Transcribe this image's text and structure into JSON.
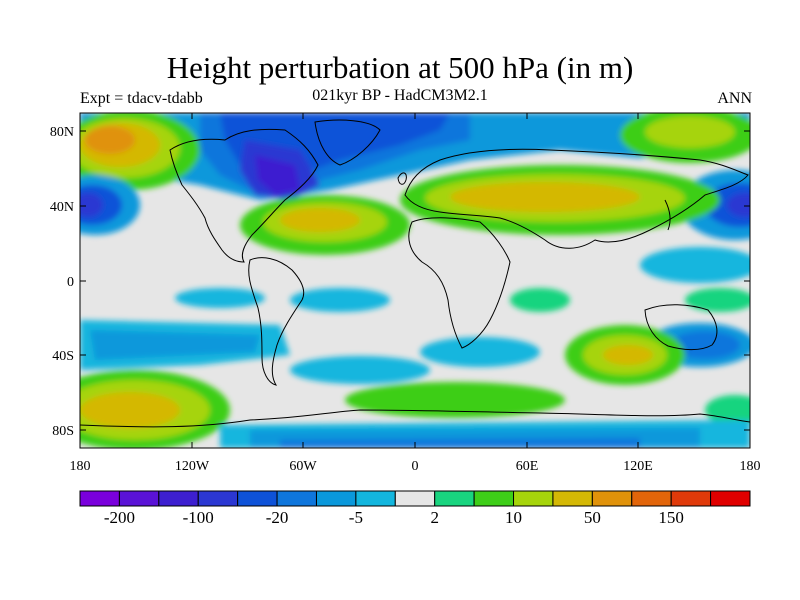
{
  "title": "Height perturbation at 500 hPa (in m)",
  "left_label": "Expt = tdacv-tdabb",
  "center_label": "021kyr BP - HadCM3M2.1",
  "right_label": "ANN",
  "lat_ticks": [
    "80N",
    "40N",
    "0",
    "40S",
    "80S"
  ],
  "lon_ticks": [
    "180",
    "120W",
    "60W",
    "0",
    "60E",
    "120E",
    "180"
  ],
  "colorbar": {
    "colors": [
      "#7a00dc",
      "#5a12d6",
      "#3d1fd0",
      "#2b37d2",
      "#0e52d8",
      "#0f76dc",
      "#0a98db",
      "#13b6de",
      "#e6e6e6",
      "#19d47f",
      "#3ece18",
      "#a6d40b",
      "#d4b805",
      "#e0920a",
      "#e2650a",
      "#e03a0a",
      "#e00000"
    ],
    "labels": [
      {
        "text": "-200",
        "boundary": 1
      },
      {
        "text": "-100",
        "boundary": 3
      },
      {
        "text": "-20",
        "boundary": 5
      },
      {
        "text": "-5",
        "boundary": 7
      },
      {
        "text": "2",
        "boundary": 9
      },
      {
        "text": "10",
        "boundary": 11
      },
      {
        "text": "50",
        "boundary": 13
      },
      {
        "text": "150",
        "boundary": 15
      }
    ]
  }
}
